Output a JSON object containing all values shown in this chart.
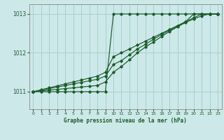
{
  "background_color": "#cce8e8",
  "grid_color": "#aacfcf",
  "line_color": "#1a5c2a",
  "xlabel": "Graphe pression niveau de la mer (hPa)",
  "xlim": [
    -0.5,
    23.5
  ],
  "ylim": [
    1010.55,
    1013.25
  ],
  "yticks": [
    1011,
    1012,
    1013
  ],
  "xticks": [
    0,
    1,
    2,
    3,
    4,
    5,
    6,
    7,
    8,
    9,
    10,
    11,
    12,
    13,
    14,
    15,
    16,
    17,
    18,
    19,
    20,
    21,
    22,
    23
  ],
  "line1_x": [
    0,
    1,
    2,
    3,
    4,
    5,
    6,
    7,
    8,
    9,
    10,
    11,
    12,
    13,
    14,
    15,
    16,
    17,
    18,
    19,
    20,
    21,
    22,
    23
  ],
  "line1_y": [
    1011.0,
    1011.0,
    1011.0,
    1011.0,
    1011.0,
    1011.0,
    1011.0,
    1011.0,
    1011.0,
    1011.0,
    1013.0,
    1013.0,
    1013.0,
    1013.0,
    1013.0,
    1013.0,
    1013.0,
    1013.0,
    1013.0,
    1013.0,
    1013.0,
    1013.0,
    1013.0,
    1013.0
  ],
  "line2_x": [
    0,
    1,
    2,
    3,
    4,
    5,
    6,
    7,
    8,
    9,
    10,
    11,
    12,
    13,
    14,
    15,
    16,
    17,
    18,
    19,
    20,
    21,
    22,
    23
  ],
  "line2_y": [
    1011.0,
    1011.05,
    1011.1,
    1011.15,
    1011.2,
    1011.25,
    1011.3,
    1011.35,
    1011.4,
    1011.5,
    1011.9,
    1012.0,
    1012.1,
    1012.2,
    1012.3,
    1012.4,
    1012.5,
    1012.6,
    1012.7,
    1012.8,
    1013.0,
    1013.0,
    1013.0,
    1013.0
  ],
  "line3_x": [
    0,
    1,
    2,
    3,
    4,
    5,
    6,
    7,
    8,
    9,
    10,
    11,
    12,
    13,
    14,
    15,
    16,
    17,
    18,
    19,
    20,
    21,
    22,
    23
  ],
  "line3_y": [
    1011.0,
    1011.04,
    1011.08,
    1011.12,
    1011.16,
    1011.2,
    1011.24,
    1011.28,
    1011.32,
    1011.4,
    1011.7,
    1011.8,
    1011.95,
    1012.1,
    1012.22,
    1012.35,
    1012.47,
    1012.58,
    1012.69,
    1012.8,
    1012.9,
    1013.0,
    1013.0,
    1013.0
  ],
  "line4_x": [
    0,
    1,
    2,
    3,
    4,
    5,
    6,
    7,
    8,
    9,
    10,
    11,
    12,
    13,
    14,
    15,
    16,
    17,
    18,
    19,
    20,
    21,
    22,
    23
  ],
  "line4_y": [
    1011.0,
    1011.02,
    1011.04,
    1011.06,
    1011.08,
    1011.1,
    1011.12,
    1011.14,
    1011.16,
    1011.25,
    1011.5,
    1011.65,
    1011.82,
    1012.0,
    1012.15,
    1012.28,
    1012.42,
    1012.55,
    1012.67,
    1012.78,
    1012.87,
    1012.95,
    1013.0,
    1013.0
  ]
}
